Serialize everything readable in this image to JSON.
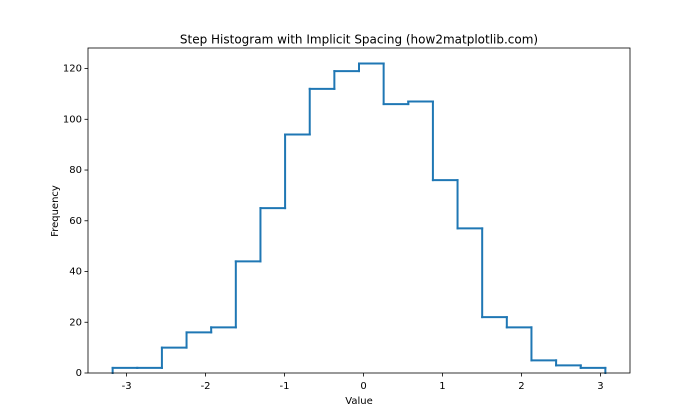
{
  "chart_data": {
    "type": "step-histogram",
    "title": "Step Histogram with Implicit Spacing (how2matplotlib.com)",
    "x_label": "Value",
    "y_label": "Frequency",
    "color": "#1f77b4",
    "bins": [
      -3.177,
      -2.865,
      -2.553,
      -2.241,
      -1.929,
      -1.617,
      -1.305,
      -0.993,
      -0.681,
      -0.369,
      -0.057,
      0.255,
      0.567,
      0.879,
      1.191,
      1.503,
      1.815,
      2.127,
      2.439,
      2.751,
      3.063
    ],
    "values": [
      2,
      2,
      10,
      16,
      18,
      44,
      65,
      94,
      112,
      119,
      122,
      106,
      107,
      76,
      57,
      22,
      18,
      5,
      3,
      2
    ],
    "xlim": [
      -3.489,
      3.375
    ],
    "ylim": [
      0,
      128.1
    ],
    "xticks": [
      -3,
      -2,
      -1,
      0,
      1,
      2,
      3
    ],
    "yticks": [
      0,
      20,
      40,
      60,
      80,
      100,
      120
    ],
    "grid": false
  }
}
